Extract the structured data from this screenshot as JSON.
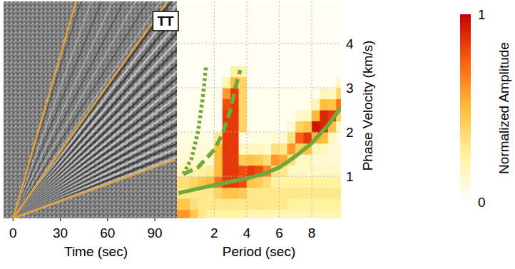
{
  "chart_data": [
    {
      "type": "image",
      "x_label": "Time (sec)",
      "xlim": [
        -6,
        104
      ],
      "xticks": [
        0,
        30,
        60,
        90
      ],
      "ylim": [
        0,
        1
      ],
      "tick_labels": "x",
      "annotation": "TT",
      "series": [
        {
          "color": "#e2a33c",
          "line_style": "solid",
          "x": [
            0,
            40
          ],
          "values": [
            0,
            1
          ]
        },
        {
          "color": "#e2a33c",
          "line_style": "solid",
          "x": [
            0,
            98
          ],
          "values": [
            0,
            1
          ]
        },
        {
          "color": "#e2a33c",
          "line_style": "solid",
          "x": [
            0,
            103
          ],
          "values": [
            0,
            0.27
          ]
        }
      ]
    },
    {
      "type": "heatmap",
      "x_label": "Period (sec)",
      "y_label": "Phase Velocity (km/s)",
      "xlim": [
        -0.3,
        9.8
      ],
      "xticks": [
        2,
        4,
        6,
        8
      ],
      "ylim": [
        0.05,
        4.95
      ],
      "yticks": [
        1,
        2,
        3,
        4
      ],
      "grid": true,
      "x_bins": [
        -0.3,
        0.5,
        1,
        1.5,
        2,
        2.5,
        3,
        3.5,
        4,
        4.5,
        5,
        5.5,
        6,
        6.5,
        7,
        7.5,
        8,
        8.5,
        9,
        9.5,
        9.8
      ],
      "y_bins": [
        0.05,
        0.25,
        0.5,
        0.75,
        1,
        1.25,
        1.5,
        1.75,
        2,
        2.25,
        2.5,
        2.75,
        3,
        3.25,
        3.5,
        3.75,
        4,
        4.25,
        4.5,
        4.75,
        4.95
      ],
      "cells": [
        [
          0.6,
          0.45,
          0.3,
          0.25,
          0.25,
          0.25,
          0.25,
          0.25,
          0.2,
          0.2,
          0.2,
          0.2,
          0.2,
          0.2,
          0.2,
          0.2,
          0.2,
          0.2,
          0.2,
          0.2
        ],
        [
          0.45,
          0.35,
          0.3,
          0.3,
          0.3,
          0.3,
          0.3,
          0.3,
          0.3,
          0.3,
          0.3,
          0.3,
          0.3,
          0.25,
          0.25,
          0.25,
          0.25,
          0.25,
          0.25,
          0.25
        ],
        [
          0.3,
          0.3,
          0.3,
          0.3,
          0.39,
          0.47,
          0.47,
          0.44,
          0.3,
          0.3,
          0.3,
          0.3,
          0.3,
          0.3,
          0.3,
          0.3,
          0.3,
          0.3,
          0.3,
          0.3
        ],
        [
          0.35,
          0.4,
          0.45,
          0.5,
          0.7,
          0.85,
          0.85,
          0.8,
          0.47,
          0.44,
          0.36,
          0.25,
          0.25,
          0.25,
          0.25,
          0.25,
          0.25,
          0.25,
          0.25,
          0.25
        ],
        [
          0.19,
          0.22,
          0.25,
          0.28,
          0.5,
          0.85,
          0.85,
          0.8,
          0.85,
          0.8,
          0.65,
          0.33,
          0.3,
          0.15,
          0.15,
          0.15,
          0.15,
          0.15,
          0.15,
          0.15
        ],
        [
          0.12,
          0.12,
          0.12,
          0.12,
          0.5,
          0.85,
          0.85,
          0.44,
          0.47,
          0.44,
          0.36,
          0.6,
          0.55,
          0.33,
          0.15,
          0.17,
          0.12,
          0.12,
          0.12,
          0.12
        ],
        [
          0.1,
          0.1,
          0.1,
          0.1,
          0.5,
          0.85,
          0.85,
          0.16,
          0.17,
          0.16,
          0.13,
          0.33,
          0.3,
          0.6,
          0.41,
          0.47,
          0.19,
          0.18,
          0.1,
          0.1
        ],
        [
          0.08,
          0.08,
          0.08,
          0.08,
          0.3,
          0.85,
          0.85,
          0.08,
          0.08,
          0.08,
          0.08,
          0.12,
          0.11,
          0.33,
          0.75,
          0.85,
          0.52,
          0.5,
          0.17,
          0.08
        ],
        [
          0.05,
          0.05,
          0.05,
          0.05,
          0.05,
          0.85,
          0.85,
          0.4,
          0.05,
          0.05,
          0.05,
          0.05,
          0.05,
          0.12,
          0.41,
          0.47,
          0.95,
          0.9,
          0.47,
          0.14
        ],
        [
          0.05,
          0.05,
          0.05,
          0.05,
          0.05,
          0.85,
          0.85,
          0.4,
          0.05,
          0.05,
          0.05,
          0.05,
          0.05,
          0.05,
          0.15,
          0.17,
          0.52,
          0.9,
          0.85,
          0.39
        ],
        [
          0.05,
          0.05,
          0.05,
          0.05,
          0.05,
          0.8,
          0.85,
          0.4,
          0.05,
          0.05,
          0.05,
          0.05,
          0.05,
          0.05,
          0.05,
          0.05,
          0.19,
          0.5,
          0.47,
          0.7
        ],
        [
          0.05,
          0.05,
          0.05,
          0.05,
          0.05,
          0.6,
          0.85,
          0.4,
          0.05,
          0.05,
          0.05,
          0.05,
          0.05,
          0.05,
          0.05,
          0.05,
          0.05,
          0.18,
          0.17,
          0.39
        ],
        [
          0.03,
          0.03,
          0.03,
          0.03,
          0.03,
          0.2,
          0.5,
          0.4,
          0.03,
          0.03,
          0.03,
          0.03,
          0.03,
          0.03,
          0.03,
          0.03,
          0.03,
          0.03,
          0.03,
          0.14
        ],
        [
          0.03,
          0.03,
          0.03,
          0.03,
          0.03,
          0.03,
          0.25,
          0.2,
          0.03,
          0.03,
          0.03,
          0.03,
          0.03,
          0.03,
          0.03,
          0.03,
          0.03,
          0.03,
          0.03,
          0.03
        ],
        [
          0.03,
          0.03,
          0.03,
          0.03,
          0.03,
          0.03,
          0.03,
          0.03,
          0.03,
          0.03,
          0.03,
          0.03,
          0.03,
          0.03,
          0.03,
          0.03,
          0.03,
          0.03,
          0.03,
          0.03
        ],
        [
          0.03,
          0.03,
          0.03,
          0.03,
          0.03,
          0.03,
          0.03,
          0.03,
          0.03,
          0.03,
          0.03,
          0.03,
          0.03,
          0.03,
          0.03,
          0.03,
          0.03,
          0.03,
          0.03,
          0.03
        ],
        [
          0.03,
          0.03,
          0.03,
          0.03,
          0.03,
          0.03,
          0.03,
          0.03,
          0.03,
          0.03,
          0.03,
          0.03,
          0.03,
          0.03,
          0.03,
          0.03,
          0.03,
          0.03,
          0.03,
          0.03
        ],
        [
          0.03,
          0.03,
          0.03,
          0.03,
          0.03,
          0.03,
          0.03,
          0.03,
          0.03,
          0.03,
          0.03,
          0.03,
          0.03,
          0.03,
          0.03,
          0.03,
          0.03,
          0.03,
          0.03,
          0.03
        ],
        [
          0.03,
          0.03,
          0.03,
          0.03,
          0.03,
          0.03,
          0.03,
          0.03,
          0.03,
          0.03,
          0.03,
          0.03,
          0.03,
          0.03,
          0.03,
          0.03,
          0.03,
          0.03,
          0.03,
          0.03
        ],
        [
          0.03,
          0.03,
          0.03,
          0.03,
          0.03,
          0.03,
          0.03,
          0.03,
          0.03,
          0.03,
          0.03,
          0.03,
          0.03,
          0.03,
          0.03,
          0.03,
          0.03,
          0.03,
          0.03,
          0.03
        ]
      ],
      "colorbar_label": "Normalized Amplitude",
      "colorbar_range": [
        0,
        1
      ],
      "colorbar_ticks": [
        0,
        1
      ],
      "series": [
        {
          "type": "line",
          "color": "#72a83a",
          "line_style": "solid",
          "x": [
            -0.2,
            1,
            2,
            3,
            4,
            5,
            6,
            7,
            8,
            9,
            9.8
          ],
          "values": [
            0.62,
            0.72,
            0.8,
            0.88,
            0.95,
            1.05,
            1.2,
            1.45,
            1.75,
            2.15,
            2.55
          ]
        },
        {
          "type": "line",
          "color": "#72a83a",
          "line_style": "dashed",
          "x": [
            0.1,
            1,
            2,
            2.5,
            3,
            3.3,
            3.6
          ],
          "values": [
            1.05,
            1.2,
            1.6,
            1.95,
            2.5,
            3.0,
            3.4
          ]
        },
        {
          "type": "line",
          "color": "#72a83a",
          "line_style": "dotted",
          "x": [
            0.1,
            0.6,
            1.0,
            1.3,
            1.5
          ],
          "values": [
            1.05,
            1.4,
            2.0,
            2.8,
            3.5
          ]
        }
      ]
    }
  ]
}
